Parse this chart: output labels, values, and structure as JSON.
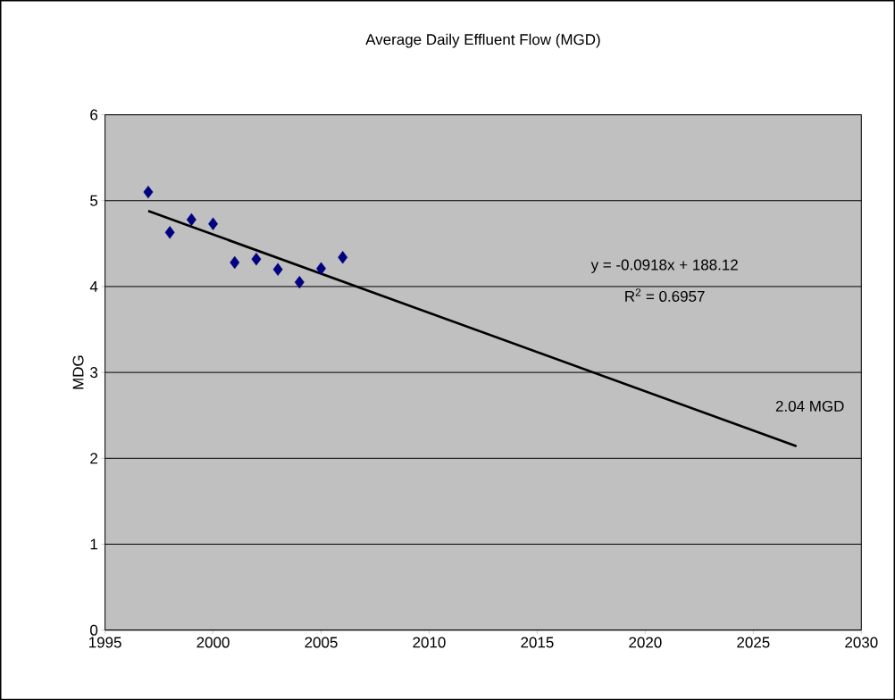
{
  "chart_data": {
    "type": "scatter",
    "title": "Average Daily Effluent Flow (MGD)",
    "ylabel": "MDG",
    "xlim": [
      1995,
      2030
    ],
    "xticks": [
      1995,
      2000,
      2005,
      2010,
      2015,
      2020,
      2025,
      2030
    ],
    "ylim": [
      0,
      6
    ],
    "yticks": [
      0,
      1,
      2,
      3,
      4,
      5,
      6
    ],
    "grid": "y",
    "series": [
      {
        "marker": "diamond",
        "color": "#000080",
        "x": [
          1997,
          1998,
          1999,
          2000,
          2001,
          2002,
          2003,
          2004,
          2005,
          2006
        ],
        "values": [
          5.1,
          4.63,
          4.78,
          4.73,
          4.28,
          4.32,
          4.2,
          4.05,
          4.21,
          4.34
        ]
      },
      {
        "type": "line",
        "marker": "none",
        "color": "#000000",
        "x": [
          1997,
          2027
        ],
        "values": [
          4.88,
          2.14
        ]
      }
    ],
    "annotations": [
      "y = -0.0918x + 188.12",
      "R$^{2}$ = 0.6957",
      {
        "text": "2.04 MGD",
        "x": 2027,
        "y": 2.14
      }
    ]
  }
}
